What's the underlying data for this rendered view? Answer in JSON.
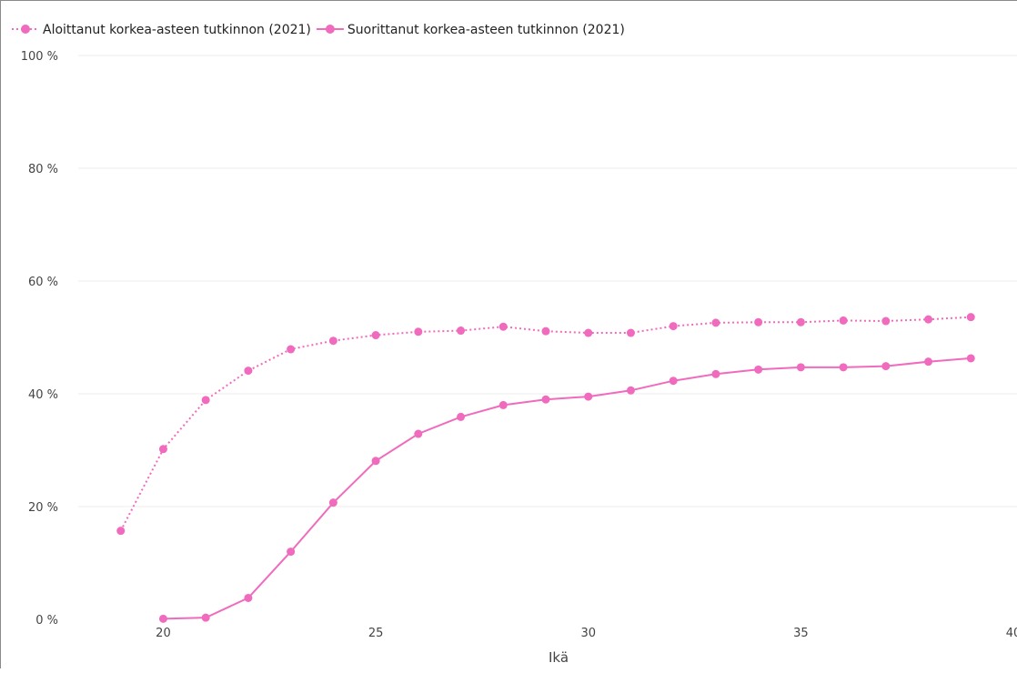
{
  "chart_data": {
    "type": "line",
    "title": "",
    "xlabel": "Ikä",
    "ylabel": "",
    "xlim": [
      18,
      40
    ],
    "ylim": [
      0,
      100
    ],
    "x_ticks": [
      20,
      25,
      30,
      35,
      40
    ],
    "x_tick_labels": [
      "20",
      "25",
      "30",
      "35",
      "40"
    ],
    "y_ticks": [
      0,
      20,
      40,
      60,
      80,
      100
    ],
    "y_tick_labels": [
      "0 %",
      "20 %",
      "40 %",
      "60 %",
      "80 %",
      "100 %"
    ],
    "grid": "horizontal",
    "legend_position": "top-left",
    "series": [
      {
        "name": "Aloittanut korkea-asteen tutkinnon (2021)",
        "color": "#f06bbd",
        "line_style": "dotted",
        "points": [
          {
            "x": 19,
            "y": 15.7
          },
          {
            "x": 20,
            "y": 30.2
          },
          {
            "x": 21,
            "y": 38.9
          },
          {
            "x": 22,
            "y": 44.1
          },
          {
            "x": 23,
            "y": 47.9
          },
          {
            "x": 24,
            "y": 49.4
          },
          {
            "x": 25,
            "y": 50.4
          },
          {
            "x": 26,
            "y": 51.0
          },
          {
            "x": 27,
            "y": 51.2
          },
          {
            "x": 28,
            "y": 51.9
          },
          {
            "x": 29,
            "y": 51.1
          },
          {
            "x": 30,
            "y": 50.8
          },
          {
            "x": 31,
            "y": 50.8
          },
          {
            "x": 32,
            "y": 52.0
          },
          {
            "x": 33,
            "y": 52.6
          },
          {
            "x": 34,
            "y": 52.7
          },
          {
            "x": 35,
            "y": 52.7
          },
          {
            "x": 36,
            "y": 53.0
          },
          {
            "x": 37,
            "y": 52.9
          },
          {
            "x": 38,
            "y": 53.2
          },
          {
            "x": 39,
            "y": 53.6
          }
        ]
      },
      {
        "name": "Suorittanut korkea-asteen tutkinnon (2021)",
        "color": "#f06bbd",
        "line_style": "solid",
        "points": [
          {
            "x": 20,
            "y": 0.1
          },
          {
            "x": 21,
            "y": 0.3
          },
          {
            "x": 22,
            "y": 3.8
          },
          {
            "x": 23,
            "y": 12.0
          },
          {
            "x": 24,
            "y": 20.7
          },
          {
            "x": 25,
            "y": 28.1
          },
          {
            "x": 26,
            "y": 32.9
          },
          {
            "x": 27,
            "y": 35.9
          },
          {
            "x": 28,
            "y": 38.0
          },
          {
            "x": 29,
            "y": 39.0
          },
          {
            "x": 30,
            "y": 39.5
          },
          {
            "x": 31,
            "y": 40.6
          },
          {
            "x": 32,
            "y": 42.3
          },
          {
            "x": 33,
            "y": 43.5
          },
          {
            "x": 34,
            "y": 44.3
          },
          {
            "x": 35,
            "y": 44.7
          },
          {
            "x": 36,
            "y": 44.7
          },
          {
            "x": 37,
            "y": 44.9
          },
          {
            "x": 38,
            "y": 45.7
          },
          {
            "x": 39,
            "y": 46.3
          }
        ]
      }
    ]
  }
}
